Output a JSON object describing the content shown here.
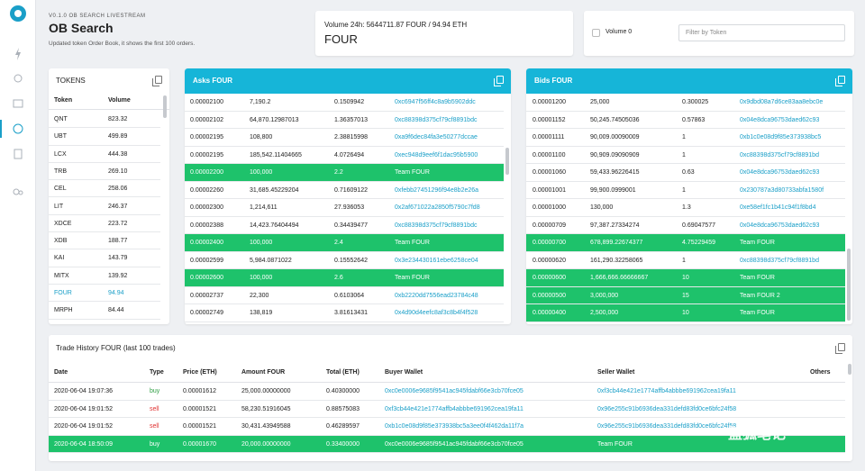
{
  "header": {
    "version": "V0.1.0 OB SEARCH LIVESTREAM",
    "title": "OB Search",
    "subtitle": "Updated token Order Book, it shows the first 100 orders."
  },
  "volume_card": {
    "summary": "Volume 24h: 5644711.87 FOUR / 94.94 ETH",
    "token": "FOUR"
  },
  "filter": {
    "checkbox_label": "Volume 0",
    "placeholder": "Filter by Token"
  },
  "tokens": {
    "title": "TOKENS",
    "columns": [
      "Token",
      "Volume"
    ],
    "rows": [
      {
        "cells": [
          "QNT",
          "823.32"
        ]
      },
      {
        "cells": [
          "UBT",
          "499.89"
        ]
      },
      {
        "cells": [
          "LCX",
          "444.38"
        ]
      },
      {
        "cells": [
          "TRB",
          "269.10"
        ]
      },
      {
        "cells": [
          "CEL",
          "258.06"
        ]
      },
      {
        "cells": [
          "LIT",
          "246.37"
        ]
      },
      {
        "cells": [
          "XDCE",
          "223.72"
        ]
      },
      {
        "cells": [
          "XDB",
          "188.77"
        ]
      },
      {
        "cells": [
          "KAI",
          "143.79"
        ]
      },
      {
        "cells": [
          "MITX",
          "139.92"
        ]
      },
      {
        "cells": [
          "FOUR",
          "94.94"
        ],
        "selected": true
      },
      {
        "cells": [
          "MRPH",
          "84.44"
        ]
      }
    ]
  },
  "asks": {
    "title": "Asks FOUR",
    "rows": [
      {
        "cells": [
          "0.00002100",
          "7,190.2",
          "0.1509942",
          "0xc6947f56ff4c8a9b5902ddc"
        ]
      },
      {
        "cells": [
          "0.00002102",
          "64,870.12987013",
          "1.36357013",
          "0xc88398d375cf79cf8891bdc"
        ]
      },
      {
        "cells": [
          "0.00002195",
          "108,800",
          "2.38815998",
          "0xa9f6dec84fa3e50277dccae"
        ]
      },
      {
        "cells": [
          "0.00002195",
          "185,542.11404665",
          "4.0726494",
          "0xec948d9eef6f1dac95b5900"
        ]
      },
      {
        "cells": [
          "0.00002200",
          "100,000",
          "2.2",
          "Team FOUR"
        ],
        "highlight": true
      },
      {
        "cells": [
          "0.00002260",
          "31,685.45229204",
          "0.71609122",
          "0xfebb27451296f94e8b2e26a"
        ]
      },
      {
        "cells": [
          "0.00002300",
          "1,214,611",
          "27.936053",
          "0x2af671022a2850f5790c7fd8"
        ]
      },
      {
        "cells": [
          "0.00002388",
          "14,423.76404494",
          "0.34439477",
          "0xc88398d375cf79cf8891bdc"
        ]
      },
      {
        "cells": [
          "0.00002400",
          "100,000",
          "2.4",
          "Team FOUR"
        ],
        "highlight": true
      },
      {
        "cells": [
          "0.00002599",
          "5,984.0871022",
          "0.15552642",
          "0x3e234430161ebe6258ce04"
        ]
      },
      {
        "cells": [
          "0.00002600",
          "100,000",
          "2.6",
          "Team FOUR"
        ],
        "highlight": true
      },
      {
        "cells": [
          "0.00002737",
          "22,300",
          "0.6103064",
          "0xb2220dd7556ead23784c48"
        ]
      },
      {
        "cells": [
          "0.00002749",
          "138,819",
          "3.81613431",
          "0x4d90d4eefc8af3c8b4f4f528"
        ]
      }
    ]
  },
  "bids": {
    "title": "Bids FOUR",
    "rows": [
      {
        "cells": [
          "0.00001200",
          "25,000",
          "0.300025",
          "0x9dbd08a7d6ce83aa8ebc0e"
        ]
      },
      {
        "cells": [
          "0.00001152",
          "50,245.74505036",
          "0.57863",
          "0x04e8dca96753daed62c93"
        ]
      },
      {
        "cells": [
          "0.00001111",
          "90,009.00090009",
          "1",
          "0xb1c0e08d9f85e373938bc5"
        ]
      },
      {
        "cells": [
          "0.00001100",
          "90,909.09090909",
          "1",
          "0xc88398d375cf79cf8891bd"
        ]
      },
      {
        "cells": [
          "0.00001060",
          "59,433.96226415",
          "0.63",
          "0x04e8dca96753daed62c93"
        ]
      },
      {
        "cells": [
          "0.00001001",
          "99,900.0999001",
          "1",
          "0x230787a3d80733abfa1580f"
        ]
      },
      {
        "cells": [
          "0.00001000",
          "130,000",
          "1.3",
          "0xe58ef1fc1b41c94f1f8bd4"
        ]
      },
      {
        "cells": [
          "0.00000709",
          "97,387.27334274",
          "0.69047577",
          "0x04e8dca96753daed62c93"
        ]
      },
      {
        "cells": [
          "0.00000700",
          "678,899.22674377",
          "4.75229459",
          "Team FOUR"
        ],
        "highlight": true
      },
      {
        "cells": [
          "0.00000620",
          "161,290.32258065",
          "1",
          "0xc88398d375cf79cf8891bd"
        ]
      },
      {
        "cells": [
          "0.00000600",
          "1,666,666.66666667",
          "10",
          "Team FOUR"
        ],
        "highlight": true
      },
      {
        "cells": [
          "0.00000500",
          "3,000,000",
          "15",
          "Team FOUR 2"
        ],
        "highlight": true
      },
      {
        "cells": [
          "0.00000400",
          "2,500,000",
          "10",
          "Team FOUR"
        ],
        "highlight": true
      }
    ]
  },
  "trades": {
    "title": "Trade History FOUR (last 100 trades)",
    "columns": [
      "Date",
      "Type",
      "Price (ETH)",
      "Amount FOUR",
      "Total (ETH)",
      "Buyer Wallet",
      "Seller Wallet",
      "Others"
    ],
    "rows": [
      {
        "cells": [
          "2020-06-04 19:07:36",
          "buy",
          "0.00001612",
          "25,000.00000000",
          "0.40300000",
          "0xc0e0006e9685f9541ac945fdabf66e3cb70fce05",
          "0xf3cb44e421e1774affb4abbbe691962cea19fa11"
        ],
        "type_color": "#2f9e44"
      },
      {
        "cells": [
          "2020-06-04 19:01:52",
          "sell",
          "0.00001521",
          "58,230.51916045",
          "0.88575083",
          "0xf3cb44e421e1774affb4abbbe691962cea19fa11",
          "0x96e255c91b6936dea331defd83fd0ce6bfc24f58"
        ],
        "type_color": "#e03131"
      },
      {
        "cells": [
          "2020-06-04 19:01:52",
          "sell",
          "0.00001521",
          "30,431.43949588",
          "0.46289597",
          "0xb1c0e08d9f85e373938bc5a3ee0f4f462da11f7a",
          "0x96e255c91b6936dea331defd83fd0ce6bfc24f58"
        ],
        "type_color": "#e03131"
      },
      {
        "cells": [
          "2020-06-04 18:50:09",
          "buy",
          "0.00001670",
          "20,000.00000000",
          "0.33400000",
          "0xc0e0006e9685f9541ac945fdabf66e3cb70fce05",
          "Team FOUR"
        ],
        "highlight": true,
        "type_color": "#ffffff"
      }
    ]
  },
  "watermark": "蓝狐笔记"
}
